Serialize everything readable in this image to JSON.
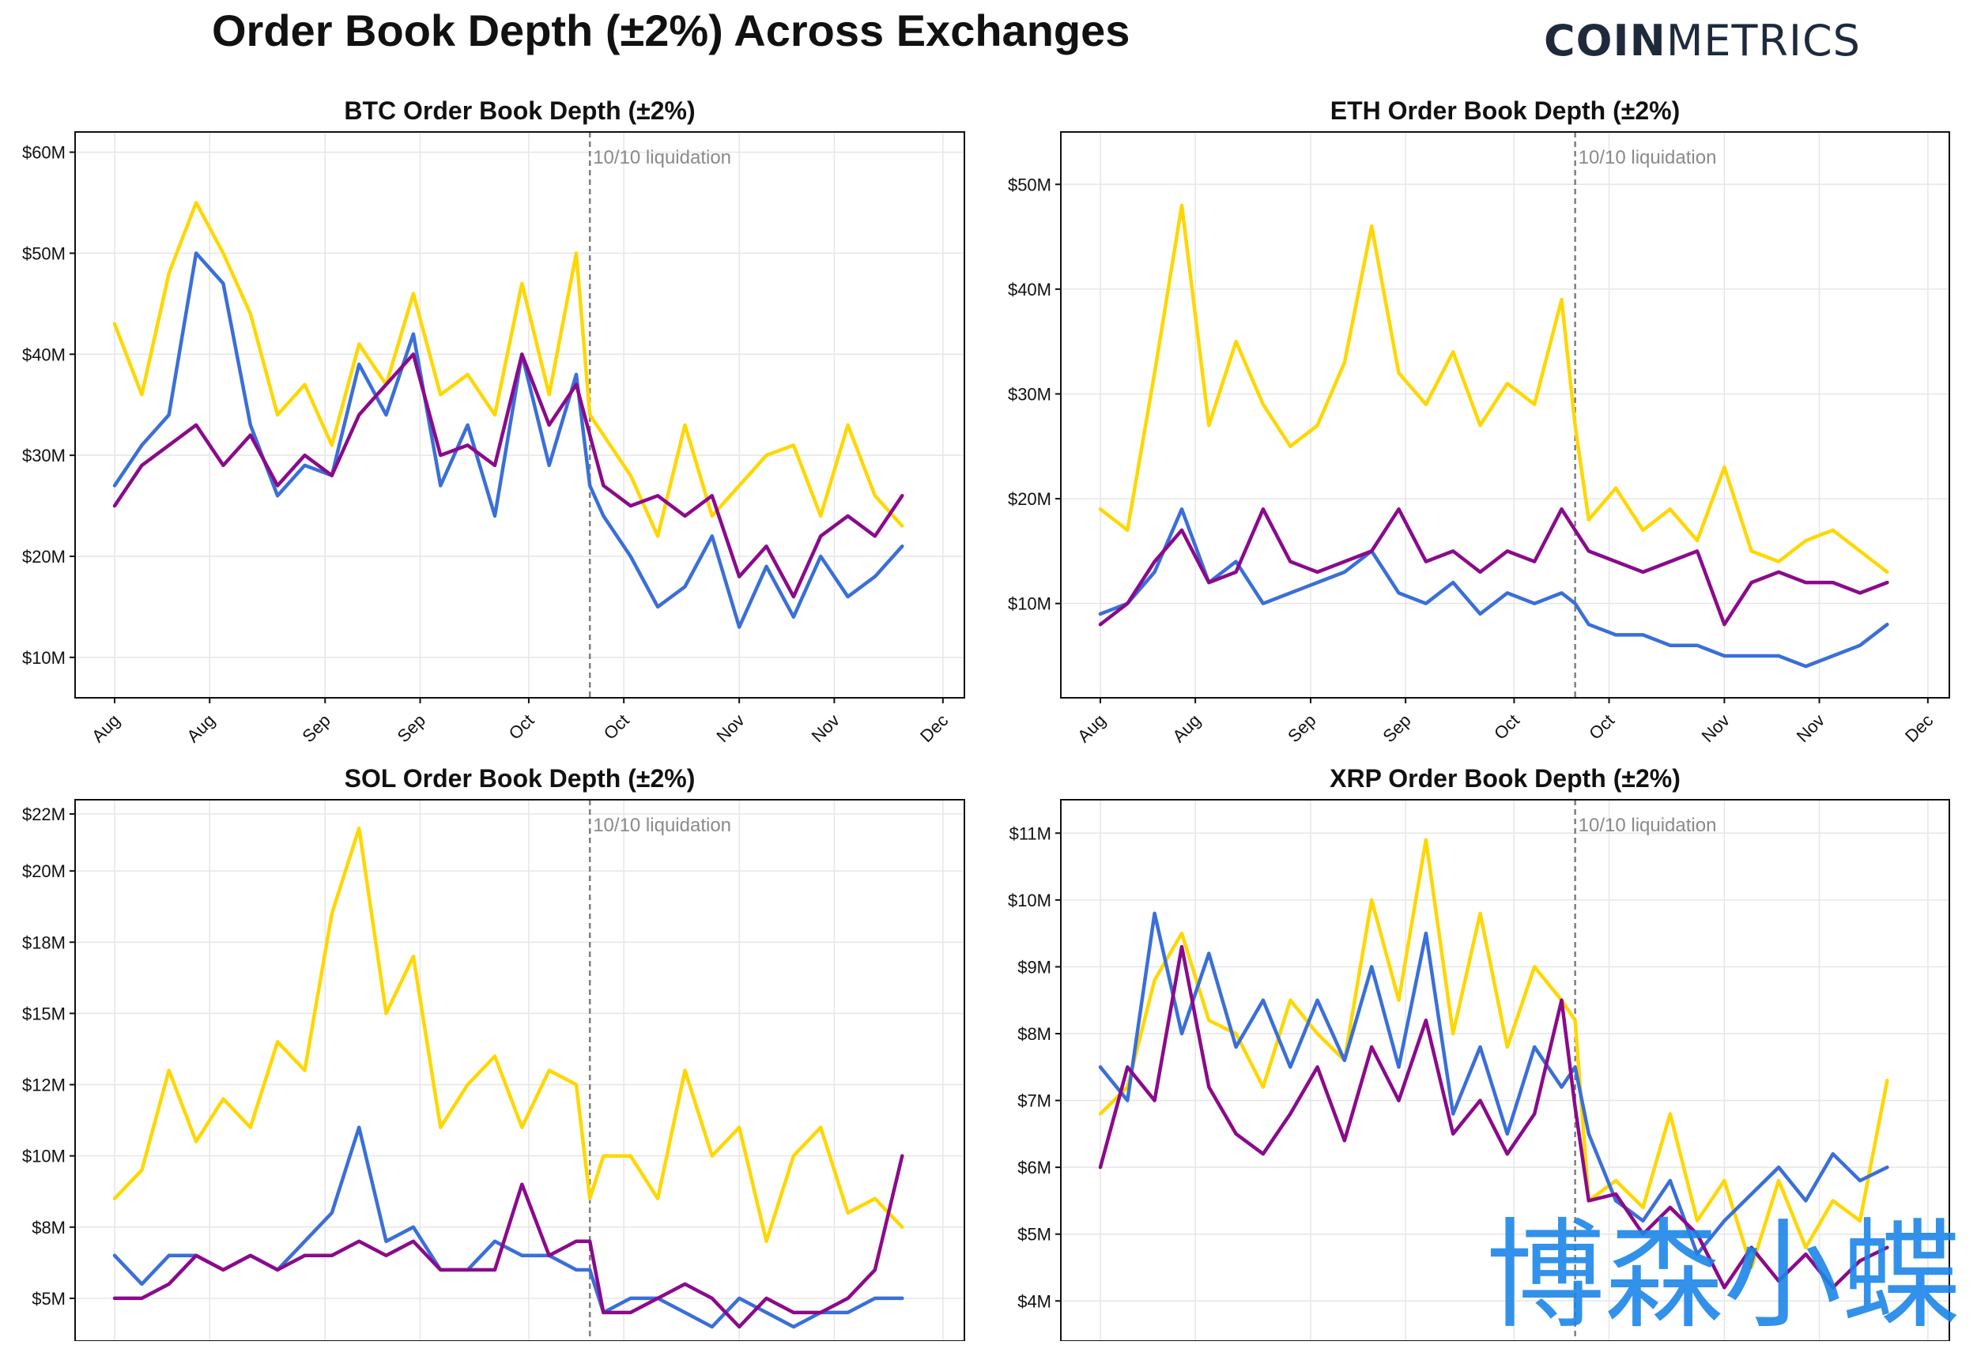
{
  "title": "Order Book Depth (±2%) Across Exchanges",
  "brand": {
    "part_bold": "COIN",
    "part_light": "METRICS"
  },
  "watermark_text": "博森小蝶",
  "colors": {
    "yellow": "#ffd700",
    "blue": "#3a6fd8",
    "purple": "#8b0a8b",
    "grid": "#e6e6e6",
    "axis": "#111111",
    "annotation": "#7f7f7f"
  },
  "chart_data": [
    {
      "id": "btc",
      "type": "line",
      "title": "BTC Order Book Depth (±2%)",
      "ylim": [
        6,
        62
      ],
      "yticks": [
        10,
        20,
        30,
        40,
        50,
        60
      ],
      "ytick_labels": [
        "$10M",
        "$20M",
        "$30M",
        "$40M",
        "$50M",
        "$60M"
      ],
      "xlim": [
        0,
        124
      ],
      "xticks": [
        0,
        14,
        31,
        45,
        61,
        75,
        92,
        106,
        122
      ],
      "xtick_labels": [
        "Aug",
        "Aug",
        "Sep",
        "Sep",
        "Oct",
        "Oct",
        "Nov",
        "Nov",
        "Dec"
      ],
      "event": {
        "x": 70,
        "label": "10/10 liquidation"
      },
      "x": [
        0,
        4,
        8,
        12,
        16,
        20,
        24,
        28,
        32,
        36,
        40,
        44,
        48,
        52,
        56,
        60,
        64,
        68,
        70,
        72,
        76,
        80,
        84,
        88,
        92,
        96,
        100,
        104,
        108,
        112,
        116
      ],
      "series": [
        {
          "name": "yellow",
          "color": "#ffd700",
          "values": [
            43,
            36,
            48,
            55,
            50,
            44,
            34,
            37,
            31,
            41,
            37,
            46,
            36,
            38,
            34,
            47,
            36,
            50,
            34,
            32,
            28,
            22,
            33,
            24,
            27,
            30,
            31,
            24,
            33,
            26,
            23
          ]
        },
        {
          "name": "blue",
          "color": "#3a6fd8",
          "values": [
            27,
            31,
            34,
            50,
            47,
            33,
            26,
            29,
            28,
            39,
            34,
            42,
            27,
            33,
            24,
            40,
            29,
            38,
            27,
            24,
            20,
            15,
            17,
            22,
            13,
            19,
            14,
            20,
            16,
            18,
            21
          ]
        },
        {
          "name": "purple",
          "color": "#8b0a8b",
          "values": [
            25,
            29,
            31,
            33,
            29,
            32,
            27,
            30,
            28,
            34,
            37,
            40,
            30,
            31,
            29,
            40,
            33,
            37,
            32,
            27,
            25,
            26,
            24,
            26,
            18,
            21,
            16,
            22,
            24,
            22,
            26
          ]
        }
      ]
    },
    {
      "id": "eth",
      "type": "line",
      "title": "ETH Order Book Depth (±2%)",
      "ylim": [
        1,
        55
      ],
      "yticks": [
        10,
        20,
        30,
        40,
        50
      ],
      "ytick_labels": [
        "$10M",
        "$20M",
        "$30M",
        "$40M",
        "$50M"
      ],
      "xlim": [
        0,
        124
      ],
      "xticks": [
        0,
        14,
        31,
        45,
        61,
        75,
        92,
        106,
        122
      ],
      "xtick_labels": [
        "Aug",
        "Aug",
        "Sep",
        "Sep",
        "Oct",
        "Oct",
        "Nov",
        "Nov",
        "Dec"
      ],
      "event": {
        "x": 70,
        "label": "10/10 liquidation"
      },
      "x": [
        0,
        4,
        8,
        12,
        16,
        20,
        24,
        28,
        32,
        36,
        40,
        44,
        48,
        52,
        56,
        60,
        64,
        68,
        70,
        72,
        76,
        80,
        84,
        88,
        92,
        96,
        100,
        104,
        108,
        112,
        116
      ],
      "series": [
        {
          "name": "yellow",
          "color": "#ffd700",
          "values": [
            19,
            17,
            32,
            48,
            27,
            35,
            29,
            25,
            27,
            33,
            46,
            32,
            29,
            34,
            27,
            31,
            29,
            39,
            27,
            18,
            21,
            17,
            19,
            16,
            23,
            15,
            14,
            16,
            17,
            15,
            13
          ]
        },
        {
          "name": "blue",
          "color": "#3a6fd8",
          "values": [
            9,
            10,
            13,
            19,
            12,
            14,
            10,
            11,
            12,
            13,
            15,
            11,
            10,
            12,
            9,
            11,
            10,
            11,
            10,
            8,
            7,
            7,
            6,
            6,
            5,
            5,
            5,
            4,
            5,
            6,
            8
          ]
        },
        {
          "name": "purple",
          "color": "#8b0a8b",
          "values": [
            8,
            10,
            14,
            17,
            12,
            13,
            19,
            14,
            13,
            14,
            15,
            19,
            14,
            15,
            13,
            15,
            14,
            19,
            17,
            15,
            14,
            13,
            14,
            15,
            8,
            12,
            13,
            12,
            12,
            11,
            12
          ]
        }
      ]
    },
    {
      "id": "sol",
      "type": "line",
      "title": "SOL Order Book Depth (±2%)",
      "ylim": [
        3.5,
        22.5
      ],
      "yticks": [
        5,
        7.5,
        10,
        12.5,
        15,
        17.5,
        20,
        22
      ],
      "ytick_labels": [
        "$5M",
        "$8M",
        "$10M",
        "$12M",
        "$15M",
        "$18M",
        "$20M",
        "$22M"
      ],
      "xlim": [
        0,
        124
      ],
      "xticks": [
        0,
        14,
        31,
        45,
        61,
        75,
        92,
        106,
        122
      ],
      "xtick_labels": [
        "Aug",
        "Aug",
        "Sep",
        "Sep",
        "Oct",
        "Oct",
        "Nov",
        "Nov",
        "Dec"
      ],
      "event": {
        "x": 70,
        "label": "10/10 liquidation"
      },
      "x": [
        0,
        4,
        8,
        12,
        16,
        20,
        24,
        28,
        32,
        36,
        40,
        44,
        48,
        52,
        56,
        60,
        64,
        68,
        70,
        72,
        76,
        80,
        84,
        88,
        92,
        96,
        100,
        104,
        108,
        112,
        116
      ],
      "series": [
        {
          "name": "yellow",
          "color": "#ffd700",
          "values": [
            8.5,
            9.5,
            13,
            10.5,
            12,
            11,
            14,
            13,
            18.5,
            21.5,
            15,
            17,
            11,
            12.5,
            13.5,
            11,
            13,
            12.5,
            8.5,
            10,
            10,
            8.5,
            13,
            10,
            11,
            7,
            10,
            11,
            8,
            8.5,
            7.5
          ]
        },
        {
          "name": "blue",
          "color": "#3a6fd8",
          "values": [
            6.5,
            5.5,
            6.5,
            6.5,
            6,
            6.5,
            6,
            7,
            8,
            11,
            7,
            7.5,
            6,
            6,
            7,
            6.5,
            6.5,
            6,
            6,
            4.5,
            5,
            5,
            4.5,
            4,
            5,
            4.5,
            4,
            4.5,
            4.5,
            5,
            5
          ]
        },
        {
          "name": "purple",
          "color": "#8b0a8b",
          "values": [
            5,
            5,
            5.5,
            6.5,
            6,
            6.5,
            6,
            6.5,
            6.5,
            7,
            6.5,
            7,
            6,
            6,
            6,
            9,
            6.5,
            7,
            7,
            4.5,
            4.5,
            5,
            5.5,
            5,
            4,
            5,
            4.5,
            4.5,
            5,
            6,
            10
          ]
        }
      ]
    },
    {
      "id": "xrp",
      "type": "line",
      "title": "XRP Order Book Depth (±2%)",
      "ylim": [
        3.4,
        11.5
      ],
      "yticks": [
        4,
        5,
        6,
        7,
        8,
        9,
        10,
        11
      ],
      "ytick_labels": [
        "$4M",
        "$5M",
        "$6M",
        "$7M",
        "$8M",
        "$9M",
        "$10M",
        "$11M"
      ],
      "xlim": [
        0,
        124
      ],
      "xticks": [
        0,
        14,
        31,
        45,
        61,
        75,
        92,
        106,
        122
      ],
      "xtick_labels": [
        "Aug",
        "Aug",
        "Sep",
        "Sep",
        "Oct",
        "Oct",
        "Nov",
        "Nov",
        "Dec"
      ],
      "event": {
        "x": 70,
        "label": "10/10 liquidation"
      },
      "x": [
        0,
        4,
        8,
        12,
        16,
        20,
        24,
        28,
        32,
        36,
        40,
        44,
        48,
        52,
        56,
        60,
        64,
        68,
        70,
        72,
        76,
        80,
        84,
        88,
        92,
        96,
        100,
        104,
        108,
        112,
        116
      ],
      "series": [
        {
          "name": "yellow",
          "color": "#ffd700",
          "values": [
            6.8,
            7.2,
            8.8,
            9.5,
            8.2,
            8.0,
            7.2,
            8.5,
            8.0,
            7.6,
            10.0,
            8.5,
            10.9,
            8.0,
            9.8,
            7.8,
            9.0,
            8.5,
            8.2,
            5.5,
            5.8,
            5.4,
            6.8,
            5.2,
            5.8,
            4.5,
            5.8,
            4.8,
            5.5,
            5.2,
            7.3
          ]
        },
        {
          "name": "blue",
          "color": "#3a6fd8",
          "values": [
            7.5,
            7.0,
            9.8,
            8.0,
            9.2,
            7.8,
            8.5,
            7.5,
            8.5,
            7.6,
            9.0,
            7.5,
            9.5,
            6.8,
            7.8,
            6.5,
            7.8,
            7.2,
            7.5,
            6.5,
            5.5,
            5.2,
            5.8,
            4.7,
            5.2,
            5.6,
            6.0,
            5.5,
            6.2,
            5.8,
            6.0
          ]
        },
        {
          "name": "purple",
          "color": "#8b0a8b",
          "values": [
            6.0,
            7.5,
            7.0,
            9.3,
            7.2,
            6.5,
            6.2,
            6.8,
            7.5,
            6.4,
            7.8,
            7.0,
            8.2,
            6.5,
            7.0,
            6.2,
            6.8,
            8.5,
            6.9,
            5.5,
            5.6,
            5.0,
            5.4,
            5.0,
            4.2,
            4.8,
            4.3,
            4.7,
            4.2,
            4.6,
            4.8
          ]
        }
      ]
    }
  ]
}
